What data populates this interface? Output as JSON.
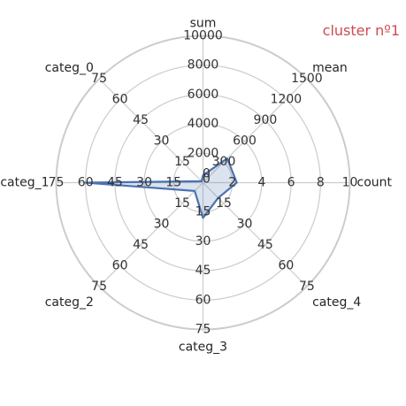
{
  "chart_data": {
    "type": "radar",
    "title": "cluster nº1",
    "title_color": "#d04a52",
    "series_color": "#4c72b0",
    "fill_color": "#4c72b0",
    "grid_color": "#cccccc",
    "axes": [
      {
        "label": "count",
        "ticks": [
          "2",
          "4",
          "6",
          "8",
          "10"
        ],
        "max": 10
      },
      {
        "label": "mean",
        "ticks": [
          "300",
          "600",
          "900",
          "1200",
          "1500"
        ],
        "max": 1500
      },
      {
        "label": "sum",
        "ticks": [
          "2000",
          "4000",
          "6000",
          "8000",
          "10000"
        ],
        "max": 10000
      },
      {
        "label": "categ_0",
        "ticks": [
          "15",
          "30",
          "45",
          "60",
          "75"
        ],
        "max": 75
      },
      {
        "label": "categ_1",
        "ticks": [
          "15",
          "30",
          "45",
          "60",
          "75"
        ],
        "max": 75
      },
      {
        "label": "categ_2",
        "ticks": [
          "15",
          "30",
          "45",
          "60",
          "75"
        ],
        "max": 75
      },
      {
        "label": "categ_3",
        "ticks": [
          "15",
          "30",
          "45",
          "60",
          "75"
        ],
        "max": 75
      },
      {
        "label": "categ_4",
        "ticks": [
          "15",
          "30",
          "45",
          "60",
          "75"
        ],
        "max": 75
      }
    ],
    "zero_ticks": [
      "0",
      "0"
    ],
    "series": [
      {
        "values": [
          2.3,
          350,
          500,
          1,
          60,
          6,
          18,
          11
        ]
      }
    ]
  }
}
